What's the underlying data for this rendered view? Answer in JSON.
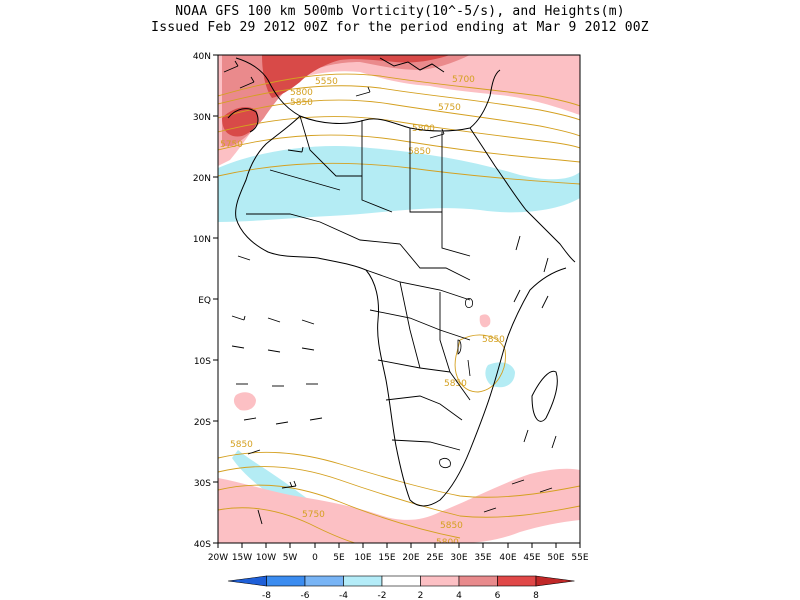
{
  "title": {
    "line1": "NOAA GFS 100 km 500mb Vorticity(10^-5/s), and Heights(m)",
    "line2": "Issued Feb 29 2012 00Z for the period ending at Mar 9 2012 00Z"
  },
  "map": {
    "lat_labels": [
      "40N",
      "30N",
      "20N",
      "10N",
      "EQ",
      "10S",
      "20S",
      "30S",
      "40S"
    ],
    "lon_labels": [
      "20W",
      "15W",
      "10W",
      "5W",
      "0",
      "5E",
      "10E",
      "15E",
      "20E",
      "25E",
      "30E",
      "35E",
      "40E",
      "45E",
      "50E",
      "55E"
    ],
    "height_labels": [
      "5550",
      "5700",
      "5800",
      "5850",
      "5750",
      "5800",
      "5750",
      "5850",
      "5850",
      "5850",
      "5850",
      "5750",
      "5850",
      "5800",
      "5700"
    ]
  },
  "colorbar": {
    "labels": [
      "-8",
      "-6",
      "-4",
      "-2",
      "2",
      "4",
      "6",
      "8"
    ],
    "colors": [
      "#1e5fd8",
      "#3b8cf0",
      "#78b4f5",
      "#b4ecf8",
      "#ffffff",
      "#fcc0c4",
      "#e88a8c",
      "#e04848",
      "#c02828"
    ]
  },
  "colors": {
    "contour": "#d4a020",
    "pos_light": "#fcc0c4",
    "pos_mid": "#ea8a8c",
    "pos_strong": "#d84a48",
    "neg_light": "#b4ecf4"
  }
}
